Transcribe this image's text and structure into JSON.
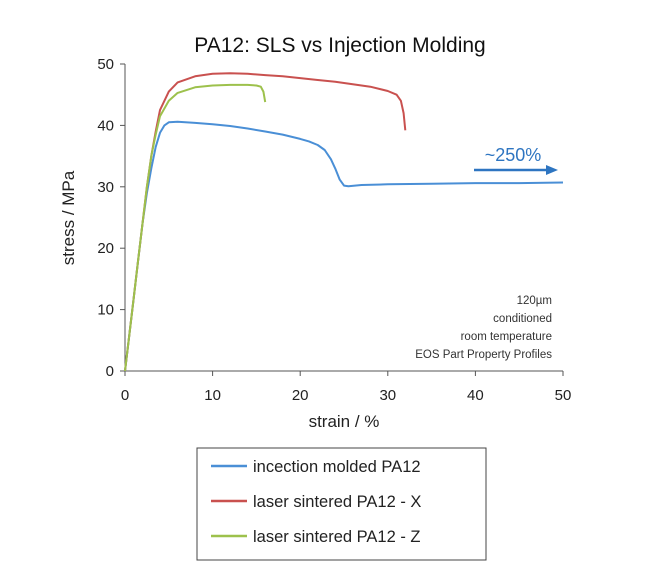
{
  "chart_data": {
    "type": "line",
    "title": "PA12: SLS vs Injection Molding",
    "xlabel": "strain / %",
    "ylabel": "stress / MPa",
    "xlim": [
      0,
      50
    ],
    "ylim": [
      0,
      50
    ],
    "xticks": [
      0,
      10,
      20,
      30,
      40,
      50
    ],
    "yticks": [
      0,
      10,
      20,
      30,
      40,
      50
    ],
    "grid": false,
    "legend_position": "bottom",
    "series": [
      {
        "name": "incection molded PA12",
        "color": "#4a8fd6",
        "x": [
          0,
          0.5,
          1,
          1.5,
          2,
          2.5,
          3,
          3.5,
          4,
          4.5,
          5,
          6,
          8,
          10,
          12,
          14,
          16,
          18,
          20,
          21,
          22,
          22.8,
          23.5,
          24,
          24.5,
          25,
          25.5,
          27,
          30,
          35,
          40,
          45,
          50
        ],
        "y": [
          0,
          6,
          12,
          18,
          24,
          29,
          33,
          36.5,
          38.8,
          40,
          40.5,
          40.6,
          40.4,
          40.2,
          39.9,
          39.5,
          39,
          38.5,
          37.8,
          37.4,
          36.8,
          36,
          34.5,
          33,
          31.2,
          30.2,
          30.1,
          30.3,
          30.4,
          30.5,
          30.6,
          30.6,
          30.7
        ]
      },
      {
        "name": "laser sintered PA12 - X",
        "color": "#c9514f",
        "x": [
          0,
          0.5,
          1,
          1.5,
          2,
          2.5,
          3,
          3.5,
          4,
          5,
          6,
          8,
          10,
          12,
          14,
          16,
          18,
          20,
          22,
          24,
          26,
          28,
          30,
          31,
          31.5,
          31.8,
          32
        ],
        "y": [
          0,
          6,
          12,
          18,
          24,
          30,
          35,
          39,
          42.5,
          45.5,
          47,
          48,
          48.4,
          48.5,
          48.4,
          48.2,
          48,
          47.7,
          47.4,
          47.1,
          46.7,
          46.3,
          45.6,
          45,
          44,
          42,
          39.2
        ]
      },
      {
        "name": "laser sintered PA12 - Z",
        "color": "#9dc14c",
        "x": [
          0,
          0.5,
          1,
          1.5,
          2,
          2.5,
          3,
          3.5,
          4,
          5,
          6,
          8,
          10,
          12,
          14,
          15,
          15.5,
          15.8,
          16
        ],
        "y": [
          0,
          6,
          12,
          18,
          24,
          30,
          35,
          38.5,
          41.5,
          44,
          45.3,
          46.2,
          46.5,
          46.6,
          46.6,
          46.5,
          46.3,
          45.5,
          43.8
        ]
      }
    ],
    "annotations": {
      "arrow_label": "~250%",
      "arrow_color": "#2e75c1",
      "notes": [
        "120µm",
        "conditioned",
        "room temperature",
        "EOS Part Property Profiles"
      ]
    }
  }
}
